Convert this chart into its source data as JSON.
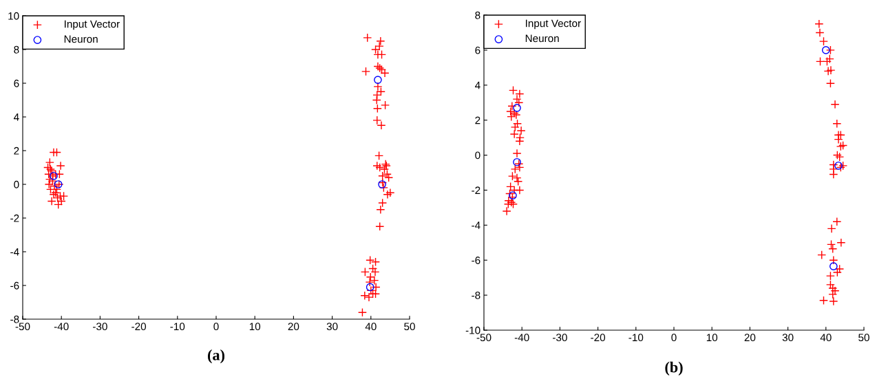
{
  "chart_data": [
    {
      "type": "scatter",
      "annotations": [
        "(a)"
      ],
      "xlim": [
        -50,
        50
      ],
      "ylim": [
        -8,
        10
      ],
      "xticks": [
        -50,
        -40,
        -30,
        -20,
        -10,
        0,
        10,
        20,
        30,
        40,
        50
      ],
      "yticks": [
        -8,
        -6,
        -4,
        -2,
        0,
        2,
        4,
        6,
        8,
        10
      ],
      "grid": false,
      "legend": "top left",
      "series": [
        {
          "name": "Input Vector",
          "color": "#ff0000",
          "marker": "cross",
          "x": [
            39.1,
            42.5,
            42.2,
            41.2,
            42.8,
            41.8,
            38.7,
            41.8,
            42.3,
            43.6,
            42.8,
            41.8,
            42.6,
            41.6,
            41.5,
            43.7,
            41.7,
            41.6,
            42.7,
            42.1,
            41.6,
            42.3,
            44.0,
            43.8,
            43.5,
            43.0,
            44.2,
            44.6,
            43.0,
            43.3,
            44.3,
            45.0,
            43.0,
            42.5,
            42.3,
            39.8,
            41.2,
            38.5,
            40.5,
            41.1,
            39.9,
            39.7,
            40.9,
            41.3,
            38.4,
            39.5,
            40.5,
            41.2,
            37.8,
            40.0,
            -42.0,
            -41.2,
            -43.0,
            -43.5,
            -42.8,
            -40.2,
            -43.3,
            -42.5,
            -41.5,
            -40.5,
            -43.0,
            -42.3,
            -43.2,
            -41.8,
            -40.6,
            -42.8,
            -41.5,
            -42.0,
            -41.0,
            -40.3,
            -39.4,
            -42.5,
            -40.8,
            -40.0,
            -41.2,
            -42.2
          ],
          "values": [
            8.7,
            8.5,
            8.2,
            8.0,
            7.7,
            7.7,
            6.7,
            7.0,
            6.9,
            6.6,
            6.8,
            5.8,
            5.5,
            5.3,
            5.0,
            4.7,
            4.5,
            3.8,
            3.5,
            1.7,
            1.1,
            1.0,
            1.1,
            1.2,
            0.9,
            0.5,
            0.6,
            0.4,
            0.1,
            -0.2,
            -0.6,
            -0.5,
            -1.1,
            -1.5,
            -2.5,
            -4.5,
            -4.6,
            -5.2,
            -5.0,
            -5.2,
            -5.5,
            -5.8,
            -5.7,
            -6.1,
            -6.6,
            -6.7,
            -6.5,
            -6.5,
            -7.6,
            -6.3,
            1.9,
            1.9,
            1.3,
            1.0,
            0.9,
            1.1,
            0.6,
            0.8,
            0.6,
            0.6,
            0.3,
            0.2,
            0.0,
            -0.1,
            0.0,
            -0.3,
            -0.5,
            -0.6,
            -0.8,
            -0.7,
            -0.7,
            -1.0,
            -1.2,
            -1.0,
            -0.3,
            0.5
          ]
        },
        {
          "name": "Neuron",
          "color": "#0000ff",
          "marker": "circle",
          "x": [
            41.8,
            42.9,
            39.8,
            -42.0,
            -40.8
          ],
          "values": [
            6.2,
            0.0,
            -6.1,
            0.5,
            0.0
          ]
        }
      ]
    },
    {
      "type": "scatter",
      "annotations": [
        "(b)"
      ],
      "xlim": [
        -50,
        50
      ],
      "ylim": [
        -10,
        8
      ],
      "xticks": [
        -50,
        -40,
        -30,
        -20,
        -10,
        0,
        10,
        20,
        30,
        40,
        50
      ],
      "yticks": [
        -10,
        -8,
        -6,
        -4,
        -2,
        0,
        2,
        4,
        6,
        8
      ],
      "grid": false,
      "legend": "top left",
      "series": [
        {
          "name": "Input Vector",
          "color": "#ff0000",
          "marker": "cross",
          "x": [
            -42.3,
            -40.6,
            -41.3,
            -40.8,
            -42.6,
            -43.0,
            -42.0,
            -41.5,
            -42.8,
            -41.2,
            -41.8,
            -42.0,
            -40.2,
            -40.5,
            -40.6,
            -41.3,
            -40.8,
            -40.6,
            -41.8,
            -42.5,
            -41.3,
            -41.0,
            -43.0,
            -42.0,
            -40.6,
            -43.2,
            -42.5,
            -43.5,
            -42.8,
            -43.6,
            -42.3,
            -44.0,
            38.4,
            38.2,
            39.4,
            41.2,
            38.5,
            40.3,
            41.0,
            40.6,
            41.3,
            41.2,
            42.4,
            42.9,
            43.3,
            43.9,
            43.3,
            44.5,
            43.9,
            43.0,
            43.6,
            42.0,
            43.9,
            42.0,
            42.0,
            44.5,
            42.9,
            41.5,
            44.0,
            41.4,
            41.8,
            38.9,
            42.0,
            43.6,
            43.0,
            41.2,
            41.2,
            41.8,
            42.4,
            41.8,
            39.4,
            42.0
          ],
          "values": [
            3.7,
            3.5,
            3.2,
            3.0,
            2.8,
            2.5,
            2.4,
            2.3,
            2.2,
            1.8,
            1.6,
            1.2,
            1.4,
            1.0,
            0.8,
            0.1,
            -0.5,
            -0.7,
            -0.8,
            -1.2,
            -1.3,
            -1.5,
            -1.8,
            -2.0,
            -2.0,
            -2.2,
            -2.4,
            -2.6,
            -2.7,
            -2.8,
            -2.8,
            -3.2,
            7.0,
            7.5,
            6.5,
            6.0,
            5.35,
            5.35,
            5.5,
            4.8,
            4.85,
            4.1,
            2.9,
            1.8,
            1.15,
            1.15,
            0.9,
            0.55,
            0.5,
            0.0,
            -0.1,
            -0.55,
            -0.7,
            -0.8,
            -1.1,
            -0.6,
            -3.8,
            -4.2,
            -5.0,
            -5.1,
            -5.35,
            -5.7,
            -6.0,
            -6.5,
            -6.7,
            -6.9,
            -7.4,
            -7.6,
            -7.75,
            -7.95,
            -8.3,
            -8.35
          ]
        },
        {
          "name": "Neuron",
          "color": "#0000ff",
          "marker": "circle",
          "x": [
            40.0,
            43.3,
            42.0,
            -41.3,
            -41.3,
            -42.4
          ],
          "values": [
            6.0,
            -0.6,
            -6.35,
            2.7,
            -0.4,
            -2.3
          ]
        }
      ]
    }
  ]
}
